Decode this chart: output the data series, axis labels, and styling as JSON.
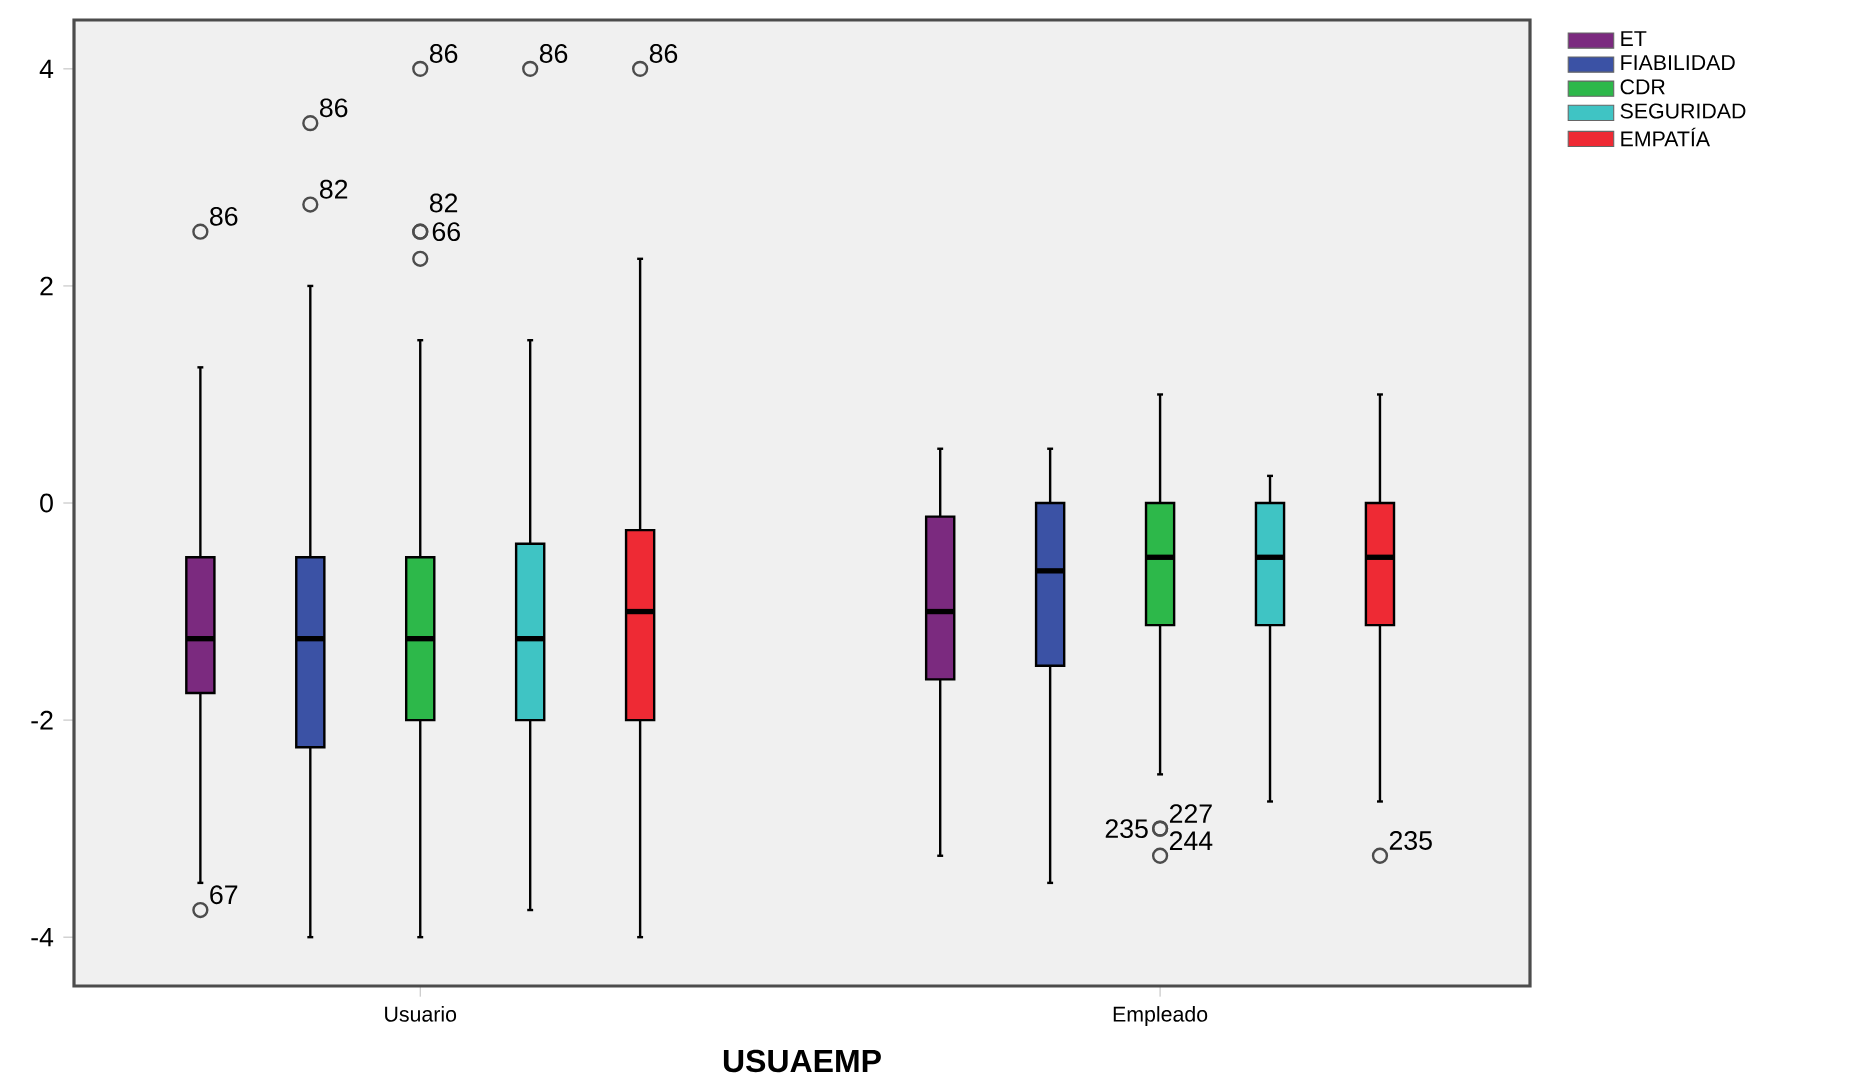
{
  "chart_data": {
    "type": "box",
    "xlabel": "USUAEMP",
    "categories": [
      "Usuario",
      "Empleado"
    ],
    "ylim": [
      -4.45,
      4.45
    ],
    "yticks": [
      -4,
      -2,
      0,
      2,
      4
    ],
    "legend": "top right",
    "grid": false,
    "marker": "circle",
    "series": [
      {
        "name": "ET",
        "color": "#7b2a7f",
        "boxes": [
          {
            "low": -3.5,
            "q1": -1.75,
            "median": -1.25,
            "q3": -0.5,
            "high": 1.25,
            "outliers": [
              2.5,
              -3.75
            ]
          },
          {
            "low": -3.25,
            "q1": -1.625,
            "median": -1.0,
            "q3": -0.125,
            "high": 0.5
          }
        ]
      },
      {
        "name": "FIABILIDAD",
        "color": "#3b52a5",
        "boxes": [
          {
            "low": -4,
            "q1": -2.25,
            "median": -1.25,
            "q3": -0.5,
            "high": 2.0,
            "outliers": [
              3.5,
              2.75
            ]
          },
          {
            "low": -3.5,
            "q1": -1.5,
            "median": -0.625,
            "q3": 0,
            "high": 0.5
          }
        ]
      },
      {
        "name": "CDR",
        "color": "#2db84a",
        "boxes": [
          {
            "low": -4,
            "q1": -2.0,
            "median": -1.25,
            "q3": -0.5,
            "high": 1.5,
            "outliers": [
              4,
              2.5,
              2.5,
              2.25
            ]
          },
          {
            "low": -2.5,
            "q1": -1.125,
            "median": -0.5,
            "q3": 0,
            "high": 1.0,
            "outliers": [
              -3,
              -3,
              -3.25
            ]
          }
        ]
      },
      {
        "name": "SEGURIDAD",
        "color": "#3fc4c4",
        "boxes": [
          {
            "low": -3.75,
            "q1": -2.0,
            "median": -1.25,
            "q3": -0.375,
            "high": 1.5,
            "outliers": [
              4
            ]
          },
          {
            "low": -2.75,
            "q1": -1.125,
            "median": -0.5,
            "q3": 0,
            "high": 0.25
          }
        ]
      },
      {
        "name": "EMPATÍA",
        "color": "#ee2a34",
        "boxes": [
          {
            "low": -4,
            "q1": -2.0,
            "median": -1.0,
            "q3": -0.25,
            "high": 2.25,
            "outliers": [
              4
            ]
          },
          {
            "low": -2.75,
            "q1": -1.125,
            "median": -0.5,
            "q3": 0,
            "high": 1.0,
            "outliers": [
              -3.25
            ]
          }
        ]
      }
    ],
    "annotations": [
      "86",
      "86",
      "86",
      "67",
      "86",
      "244",
      "235",
      "227",
      "235",
      "82",
      "86",
      "82",
      "66"
    ]
  }
}
